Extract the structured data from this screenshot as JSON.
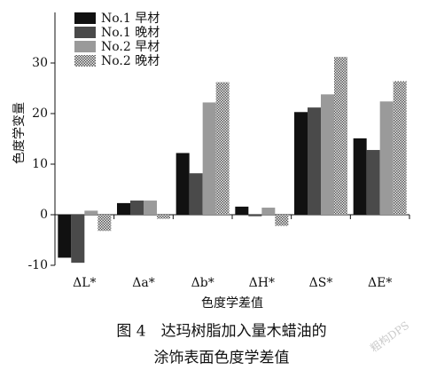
{
  "chart_data": {
    "type": "bar",
    "y_label": "色度学变量",
    "x_label": "色度学差值",
    "caption": [
      "图 4　达玛树脂加入量木蜡油的",
      "涂饰表面色度学差值"
    ],
    "watermark": "粗构DPS",
    "categories": [
      "ΔL*",
      "Δa*",
      "Δb*",
      "ΔH*",
      "ΔS*",
      "ΔE*"
    ],
    "series": [
      {
        "name": "No.1 早材",
        "color": "#111111",
        "values": [
          -8.5,
          2.3,
          12.2,
          1.6,
          20.3,
          15.1
        ]
      },
      {
        "name": "No.1 晚材",
        "color": "#4a4a4a",
        "values": [
          -9.5,
          2.8,
          8.2,
          -0.3,
          21.2,
          12.8
        ]
      },
      {
        "name": "No.2 早材",
        "color": "#9a9a9a",
        "values": [
          0.8,
          2.8,
          22.2,
          1.4,
          23.8,
          22.4
        ]
      },
      {
        "name": "No.2 晚材",
        "color": "#777777",
        "values": [
          -3.2,
          -0.8,
          26.2,
          -2.2,
          31.2,
          26.4
        ]
      }
    ],
    "ylim": [
      -10,
      40
    ],
    "yticks": [
      -10,
      0,
      10,
      20,
      30
    ],
    "legend": "top-left"
  }
}
